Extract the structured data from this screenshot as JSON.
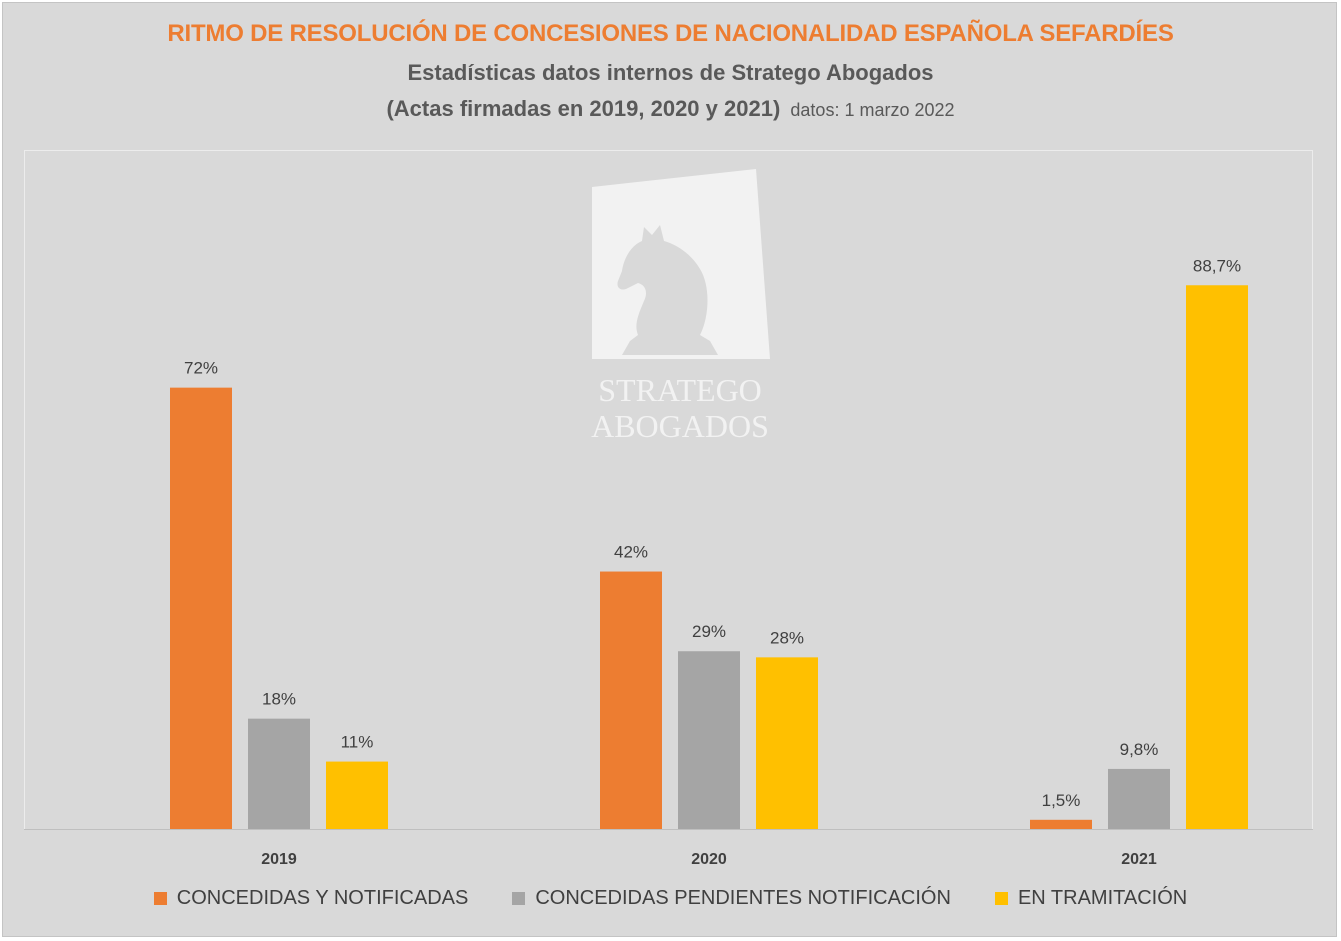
{
  "header": {
    "title": "RITMO DE RESOLUCIÓN DE CONCESIONES DE NACIONALIDAD ESPAÑOLA SEFARDÍES",
    "subtitle": "Estadísticas datos internos de Stratego Abogados",
    "subtitle2": "(Actas firmadas en 2019, 2020 y 2021)",
    "data_note": "datos: 1 marzo 2022"
  },
  "watermark": {
    "icon": "chess-knight-icon",
    "line1": "STRATEGO",
    "line2": "ABOGADOS"
  },
  "colors": {
    "title": "#ed7d31",
    "series": [
      "#ed7d31",
      "#a5a5a5",
      "#ffc000"
    ],
    "background": "#d9d9d9"
  },
  "chart_data": {
    "type": "bar",
    "title": "RITMO DE RESOLUCIÓN DE CONCESIONES DE NACIONALIDAD ESPAÑOLA SEFARDÍES",
    "categories": [
      "2019",
      "2020",
      "2021"
    ],
    "series": [
      {
        "name": "CONCEDIDAS Y NOTIFICADAS",
        "values": [
          72,
          42,
          1.5
        ],
        "labels": [
          "72%",
          "42%",
          "1,5%"
        ]
      },
      {
        "name": "CONCEDIDAS PENDIENTES NOTIFICACIÓN",
        "values": [
          18,
          29,
          9.8
        ],
        "labels": [
          "18%",
          "29%",
          "9,8%"
        ]
      },
      {
        "name": "EN TRAMITACIÓN",
        "values": [
          11,
          28,
          88.7
        ],
        "labels": [
          "11%",
          "28%",
          "88,7%"
        ]
      }
    ],
    "ylim": [
      0,
      100
    ],
    "xlabel": "",
    "ylabel": "",
    "grid": false,
    "legend_position": "bottom"
  }
}
